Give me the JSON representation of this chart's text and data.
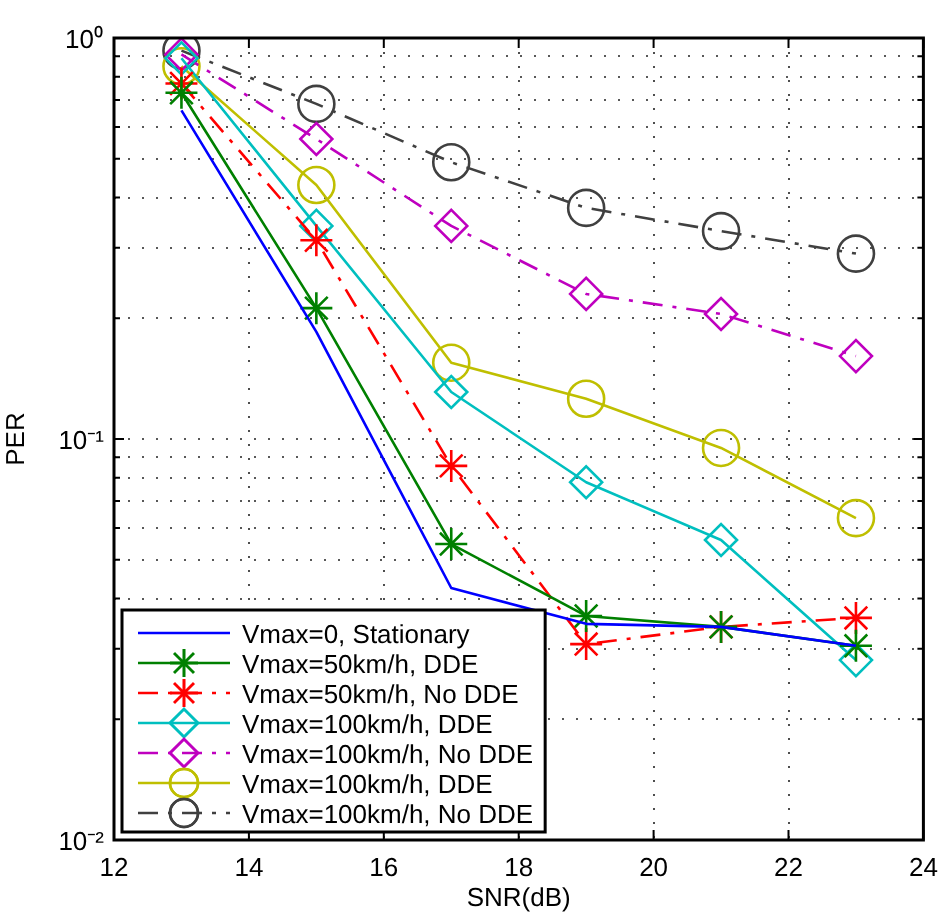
{
  "chart_data": {
    "type": "line",
    "xlabel": "SNR(dB)",
    "ylabel": "PER",
    "log": "y",
    "grid": true,
    "legend": "bottom left",
    "xlim": [
      12,
      24
    ],
    "xticks": [
      12,
      14,
      16,
      18,
      20,
      22,
      24
    ],
    "ylim": [
      0.01,
      1
    ],
    "yticks": [
      {
        "value": 0.01,
        "label": "10⁻²"
      },
      {
        "value": 0.02,
        "label": null
      },
      {
        "value": 0.03,
        "label": null
      },
      {
        "value": 0.04,
        "label": null
      },
      {
        "value": 0.05,
        "label": null
      },
      {
        "value": 0.06,
        "label": null
      },
      {
        "value": 0.07,
        "label": null
      },
      {
        "value": 0.08,
        "label": null
      },
      {
        "value": 0.09,
        "label": null
      },
      {
        "value": 0.1,
        "label": "10⁻¹"
      },
      {
        "value": 0.2,
        "label": null
      },
      {
        "value": 0.3,
        "label": null
      },
      {
        "value": 0.4,
        "label": null
      },
      {
        "value": 0.5,
        "label": null
      },
      {
        "value": 0.6,
        "label": null
      },
      {
        "value": 0.7,
        "label": null
      },
      {
        "value": 0.8,
        "label": null
      },
      {
        "value": 0.9,
        "label": null
      },
      {
        "value": 1,
        "label": "10⁰"
      }
    ],
    "x": [
      13,
      15,
      17,
      19,
      21,
      23
    ],
    "series": [
      {
        "name": "Vmax=0, Stationary",
        "color": "#0000ff",
        "marker": "none",
        "line_style": "solid",
        "values": [
          0.66,
          0.185,
          0.0425,
          0.0346,
          0.034,
          0.0305
        ]
      },
      {
        "name": "Vmax=50km/h, DDE",
        "color": "#008000",
        "marker": "cross",
        "line_style": "solid",
        "values": [
          0.73,
          0.212,
          0.0547,
          0.0362,
          0.034,
          0.0305
        ]
      },
      {
        "name": "Vmax=50km/h, No DDE",
        "color": "#ff0000",
        "marker": "cross",
        "line_style": "dashed",
        "values": [
          0.77,
          0.313,
          0.0857,
          0.0308,
          0.034,
          0.0358
        ]
      },
      {
        "name": "Vmax=100km/h, DDE",
        "color": "#00bfbf",
        "marker": "diamond",
        "line_style": "solid",
        "values": [
          0.89,
          0.34,
          0.131,
          0.078,
          0.056,
          0.0281
        ]
      },
      {
        "name": "Vmax=100km/h, No DDE",
        "color": "#bf00bf",
        "marker": "diamond",
        "line_style": "dashed",
        "values": [
          0.91,
          0.56,
          0.34,
          0.23,
          0.205,
          0.161
        ]
      },
      {
        "name": "Vmax=100km/h, DDE",
        "color": "#bfbf00",
        "marker": "circle",
        "line_style": "solid",
        "values": [
          0.85,
          0.43,
          0.155,
          0.126,
          0.095,
          0.0635
        ]
      },
      {
        "name": "Vmax=100km/h, No DDE",
        "color": "#404040",
        "marker": "circle",
        "line_style": "dashed",
        "values": [
          0.93,
          0.685,
          0.49,
          0.377,
          0.33,
          0.29
        ]
      }
    ]
  }
}
